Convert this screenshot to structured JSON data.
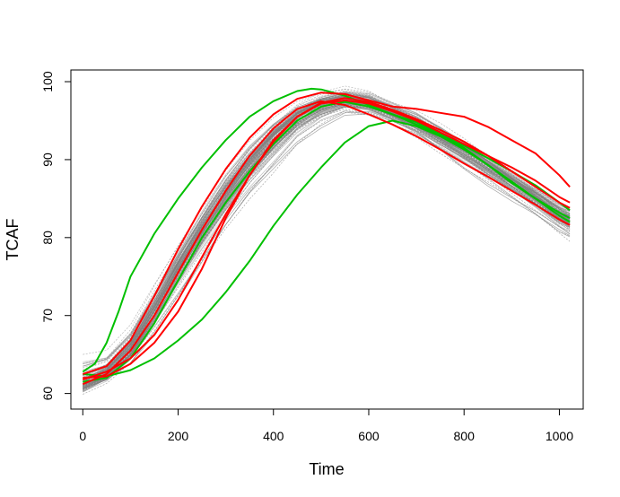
{
  "chart_data": {
    "type": "line",
    "title": "",
    "xlabel": "Time",
    "ylabel": "TCAF",
    "xlim": [
      -25,
      1050
    ],
    "ylim": [
      58,
      101.5
    ],
    "xticks": [
      0,
      200,
      400,
      600,
      800,
      1000
    ],
    "yticks": [
      60,
      70,
      80,
      90,
      100
    ],
    "grid": false,
    "legend": "none",
    "colors": {
      "sample": "#808080",
      "green": "#00c000",
      "red": "#ff0000"
    },
    "background_bundle": {
      "description_count": 120,
      "x": [
        0,
        50,
        100,
        150,
        200,
        250,
        300,
        350,
        400,
        450,
        500,
        550,
        600,
        650,
        700,
        750,
        800,
        850,
        900,
        950,
        1000,
        1022
      ],
      "center": [
        61.0,
        62.5,
        65.5,
        70.5,
        76.0,
        81.0,
        85.5,
        89.5,
        92.8,
        95.5,
        97.0,
        97.6,
        97.2,
        96.0,
        94.7,
        93.0,
        91.2,
        89.2,
        87.2,
        85.2,
        83.0,
        82.3
      ],
      "spread_low": [
        1.0,
        1.2,
        2.0,
        3.5,
        5.0,
        5.5,
        5.5,
        5.5,
        5.5,
        4.5,
        3.5,
        2.2,
        1.8,
        1.8,
        2.0,
        2.5,
        3.0,
        3.0,
        3.0,
        3.0,
        3.0,
        3.2
      ],
      "spread_high": [
        4.2,
        3.0,
        3.5,
        4.0,
        3.5,
        3.5,
        3.5,
        3.0,
        2.5,
        2.0,
        1.8,
        2.0,
        2.0,
        1.5,
        1.5,
        1.5,
        1.5,
        1.5,
        1.5,
        1.5,
        1.5,
        1.5
      ]
    },
    "series": [
      {
        "color": "#00c000",
        "x": [
          0,
          25,
          50,
          75,
          100,
          150,
          200,
          250,
          300,
          350,
          400,
          450,
          480,
          500,
          550,
          600,
          650,
          700,
          750,
          800,
          850,
          900,
          950,
          1000,
          1022
        ],
        "y": [
          62.8,
          63.8,
          66.5,
          70.5,
          75.0,
          80.5,
          85.0,
          89.0,
          92.5,
          95.5,
          97.5,
          98.8,
          99.1,
          99.0,
          98.2,
          97.0,
          95.8,
          94.5,
          93.2,
          91.8,
          90.2,
          88.5,
          86.7,
          84.5,
          83.5
        ]
      },
      {
        "color": "#00c000",
        "x": [
          0,
          50,
          100,
          150,
          200,
          250,
          300,
          350,
          400,
          450,
          500,
          550,
          600,
          650,
          700,
          750,
          800,
          850,
          900,
          950,
          1000,
          1022
        ],
        "y": [
          62.5,
          62.2,
          63.0,
          64.5,
          66.8,
          69.5,
          73.0,
          77.0,
          81.5,
          85.5,
          89.0,
          92.2,
          94.3,
          95.0,
          94.3,
          93.0,
          91.3,
          89.3,
          87.2,
          85.0,
          82.8,
          82.0
        ]
      },
      {
        "color": "#00c000",
        "x": [
          0,
          50,
          100,
          150,
          200,
          250,
          300,
          350,
          400,
          450,
          500,
          550,
          600,
          650,
          700,
          750,
          800,
          850,
          900,
          950,
          1000,
          1022
        ],
        "y": [
          61.5,
          62.0,
          64.5,
          69.0,
          74.5,
          80.0,
          84.5,
          88.5,
          92.0,
          95.0,
          96.8,
          97.4,
          96.8,
          95.8,
          94.8,
          93.3,
          91.5,
          89.3,
          87.0,
          85.0,
          83.2,
          82.5
        ]
      },
      {
        "color": "#ff0000",
        "x": [
          0,
          50,
          100,
          150,
          200,
          250,
          300,
          350,
          400,
          450,
          500,
          550,
          600,
          650,
          700,
          750,
          800,
          850,
          900,
          950,
          1000,
          1022
        ],
        "y": [
          62.5,
          63.5,
          66.8,
          72.5,
          78.5,
          84.0,
          88.8,
          92.8,
          95.8,
          97.8,
          98.6,
          98.4,
          97.6,
          96.8,
          96.5,
          96.0,
          95.5,
          94.2,
          92.5,
          90.8,
          88.0,
          86.5
        ]
      },
      {
        "color": "#ff0000",
        "x": [
          0,
          50,
          100,
          150,
          200,
          250,
          300,
          350,
          400,
          450,
          500,
          550,
          600,
          650,
          700,
          750,
          800,
          850,
          900,
          950,
          1000,
          1022
        ],
        "y": [
          62.0,
          62.2,
          63.8,
          66.5,
          70.5,
          76.0,
          82.5,
          88.0,
          92.5,
          95.5,
          97.2,
          97.6,
          97.2,
          96.2,
          95.0,
          93.5,
          92.0,
          90.5,
          89.0,
          87.3,
          85.2,
          84.5
        ]
      },
      {
        "color": "#ff0000",
        "x": [
          0,
          50,
          100,
          150,
          200,
          250,
          300,
          350,
          400,
          450,
          500,
          550,
          600,
          650,
          700,
          750,
          800,
          850,
          900,
          950,
          1000,
          1022
        ],
        "y": [
          61.2,
          62.5,
          65.5,
          70.0,
          75.5,
          81.0,
          86.0,
          90.5,
          94.0,
          96.5,
          97.5,
          97.0,
          95.8,
          94.5,
          93.0,
          91.3,
          89.5,
          87.8,
          86.0,
          84.2,
          82.3,
          81.6
        ]
      },
      {
        "color": "#ff0000",
        "x": [
          0,
          50,
          100,
          150,
          200,
          250,
          300,
          350,
          400,
          450,
          500,
          550,
          600,
          650,
          700,
          750,
          800,
          850,
          900,
          950,
          1000,
          1022
        ],
        "y": [
          61.8,
          62.8,
          64.5,
          67.5,
          72.0,
          77.5,
          83.0,
          88.0,
          92.3,
          95.5,
          97.3,
          97.9,
          97.4,
          96.4,
          95.2,
          93.8,
          92.3,
          90.5,
          88.5,
          86.5,
          84.5,
          83.8
        ]
      }
    ]
  }
}
